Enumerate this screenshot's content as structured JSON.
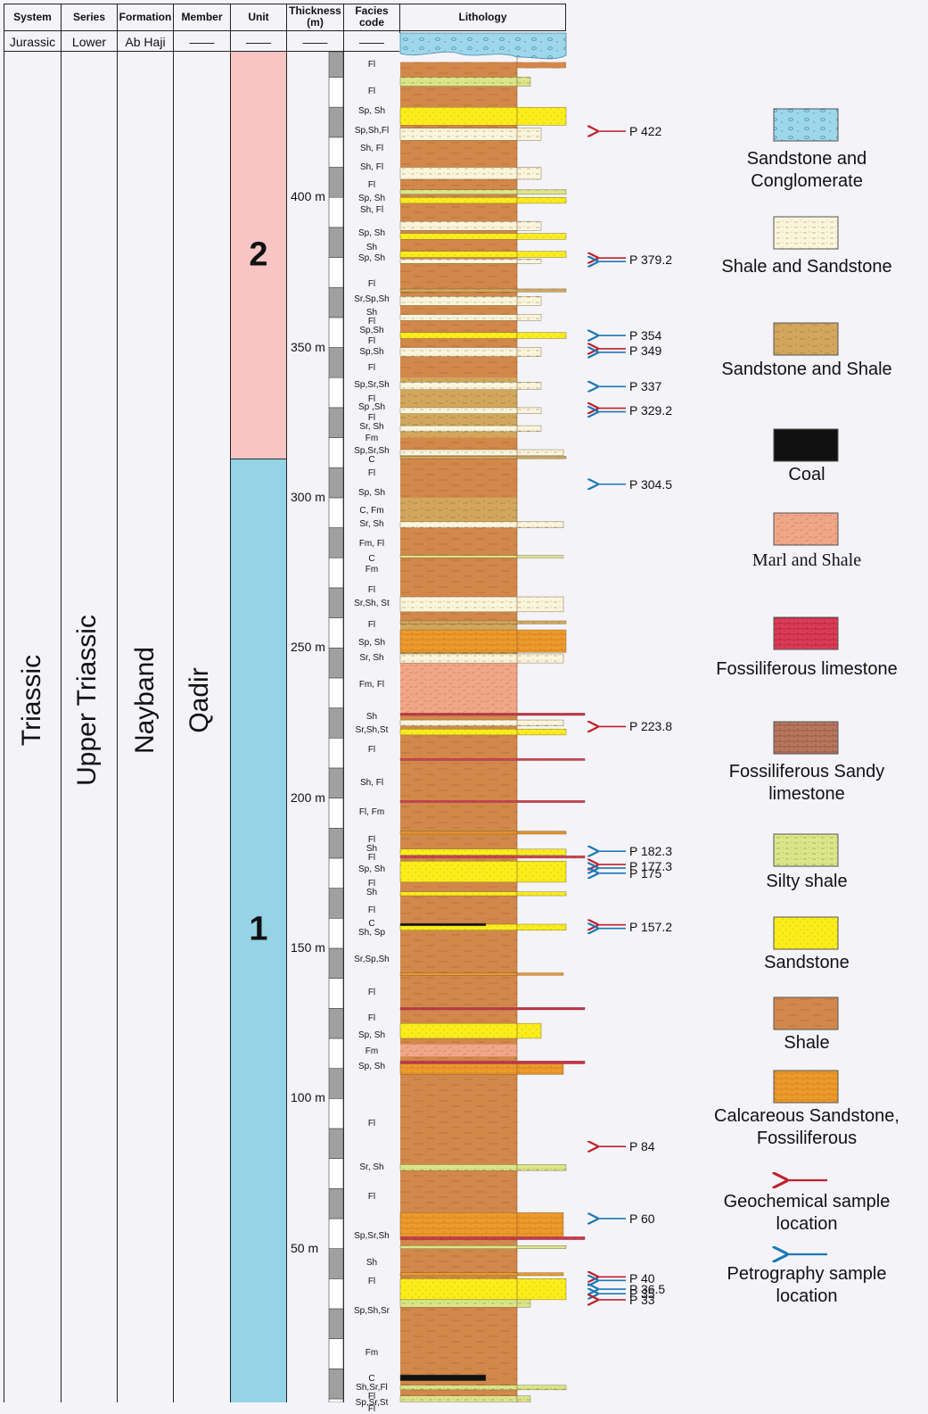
{
  "headers": {
    "system": "System",
    "series": "Series",
    "formation": "Formation",
    "member": "Member",
    "unit": "Unit",
    "thickness": "Thickness (m)",
    "facies": "Facies code",
    "lithology": "Lithology"
  },
  "top_row": {
    "system": "Jurassic",
    "series": "Lower",
    "formation": "Ab Haji",
    "member": "——",
    "unit": "——",
    "thickness": "——",
    "facies": "——"
  },
  "columns": {
    "system": "Triassic",
    "series": "Upper Triassic",
    "formation": "Nayband",
    "member": "Qadir"
  },
  "units": [
    {
      "label": "2",
      "color": "#f9c4c4"
    },
    {
      "label": "1",
      "color": "#94d4e6"
    }
  ],
  "scale": {
    "min_m": 0,
    "max_m": 450,
    "ticks": [
      {
        "value": 50,
        "label": "50 m"
      },
      {
        "value": 100,
        "label": "100 m"
      },
      {
        "value": 150,
        "label": "150 m"
      },
      {
        "value": 200,
        "label": "200 m"
      },
      {
        "value": 250,
        "label": "250 m"
      },
      {
        "value": 300,
        "label": "300 m"
      },
      {
        "value": 350,
        "label": "350 m"
      },
      {
        "value": 400,
        "label": "400 m"
      }
    ]
  },
  "facies": [
    {
      "m": 444,
      "text": "Fl"
    },
    {
      "m": 435,
      "text": "Fl"
    },
    {
      "m": 428.5,
      "text": "Sp, Sh"
    },
    {
      "m": 422,
      "text": "Sp,Sh,Fl"
    },
    {
      "m": 416,
      "text": "Sh, Fl"
    },
    {
      "m": 410,
      "text": "Sh, Fl"
    },
    {
      "m": 404,
      "text": "Fl"
    },
    {
      "m": 399.5,
      "text": "Sp, Sh"
    },
    {
      "m": 395.5,
      "text": "Sh, Fl"
    },
    {
      "m": 388,
      "text": "Sp, Sh"
    },
    {
      "m": 383,
      "text": "Sh"
    },
    {
      "m": 379.5,
      "text": "Sp, Sh"
    },
    {
      "m": 371,
      "text": "Fl"
    },
    {
      "m": 366,
      "text": "Sr,Sp,Sh"
    },
    {
      "m": 361.5,
      "text": "Sh"
    },
    {
      "m": 358.5,
      "text": "Fl"
    },
    {
      "m": 355.5,
      "text": "Sp,Sh"
    },
    {
      "m": 352,
      "text": "Fl"
    },
    {
      "m": 348.5,
      "text": "Sp,Sh"
    },
    {
      "m": 343,
      "text": "Fl"
    },
    {
      "m": 337.5,
      "text": "Sp,Sr,Sh"
    },
    {
      "m": 332.5,
      "text": "Fl"
    },
    {
      "m": 330,
      "text": "Sp ,Sh"
    },
    {
      "m": 326.5,
      "text": "Fl"
    },
    {
      "m": 323.5,
      "text": "Sr, Sh"
    },
    {
      "m": 319.5,
      "text": "Fm"
    },
    {
      "m": 315.5,
      "text": "Sp,Sr,Sh"
    },
    {
      "m": 312.5,
      "text": "C"
    },
    {
      "m": 308,
      "text": "Fl"
    },
    {
      "m": 301.5,
      "text": "Sp, Sh"
    },
    {
      "m": 295.5,
      "text": "C, Fm"
    },
    {
      "m": 291,
      "text": "Sr, Sh"
    },
    {
      "m": 284.5,
      "text": "Fm, Fl"
    },
    {
      "m": 279.5,
      "text": "C"
    },
    {
      "m": 276,
      "text": "Fm"
    },
    {
      "m": 269,
      "text": "Fl"
    },
    {
      "m": 264.5,
      "text": "Sr,Sh, St"
    },
    {
      "m": 257.5,
      "text": "Fl"
    },
    {
      "m": 251.5,
      "text": "Sp, Sh"
    },
    {
      "m": 246.5,
      "text": "Sr, Sh"
    },
    {
      "m": 237.5,
      "text": "Fm, Fl"
    },
    {
      "m": 227,
      "text": "Sh"
    },
    {
      "m": 222.5,
      "text": "Sr,Sh,St"
    },
    {
      "m": 216,
      "text": "Fl"
    },
    {
      "m": 205,
      "text": "Sh, Fl"
    },
    {
      "m": 195,
      "text": "Fl, Fm"
    },
    {
      "m": 186,
      "text": "Fl"
    },
    {
      "m": 183,
      "text": "Sh"
    },
    {
      "m": 180,
      "text": "Fl"
    },
    {
      "m": 176,
      "text": "Sp, Sh"
    },
    {
      "m": 171.5,
      "text": "Fl"
    },
    {
      "m": 168.5,
      "text": "Sh"
    },
    {
      "m": 162.5,
      "text": "Fl"
    },
    {
      "m": 158,
      "text": "C"
    },
    {
      "m": 155,
      "text": "Sh, Sp"
    },
    {
      "m": 146,
      "text": "Sr,Sp,Sh"
    },
    {
      "m": 135,
      "text": "Fl"
    },
    {
      "m": 126.5,
      "text": "Fl"
    },
    {
      "m": 121,
      "text": "Sp, Sh"
    },
    {
      "m": 115.5,
      "text": "Fm"
    },
    {
      "m": 110.5,
      "text": "Sp, Sh"
    },
    {
      "m": 91.5,
      "text": "Fl"
    },
    {
      "m": 77,
      "text": "Sr, Sh"
    },
    {
      "m": 67,
      "text": "Fl"
    },
    {
      "m": 54,
      "text": "Sp,Sr,Sh"
    },
    {
      "m": 45,
      "text": "Sh"
    },
    {
      "m": 39,
      "text": "Fl"
    },
    {
      "m": 29,
      "text": "Sp,Sh,Sr"
    },
    {
      "m": 15,
      "text": "Fm"
    },
    {
      "m": 6.5,
      "text": "C"
    },
    {
      "m": 3.5,
      "text": "Sh,Sr,Fl"
    },
    {
      "m": 0.5,
      "text": "Fl"
    },
    {
      "m": -1.5,
      "text": "Sp,Sr,St"
    },
    {
      "m": -3.5,
      "text": "Fl"
    }
  ],
  "samples": [
    {
      "label": "P 422",
      "m": 422,
      "type": "geochemical"
    },
    {
      "label": "P 379.2",
      "m": 379.2,
      "type": "both"
    },
    {
      "label": "P 354",
      "m": 354,
      "type": "petrography"
    },
    {
      "label": "P 349",
      "m": 349,
      "type": "both"
    },
    {
      "label": "P 337",
      "m": 337,
      "type": "petrography"
    },
    {
      "label": "P 329.2",
      "m": 329.2,
      "type": "both"
    },
    {
      "label": "P 304.5",
      "m": 304.5,
      "type": "petrography"
    },
    {
      "label": "P 223.8",
      "m": 223.8,
      "type": "geochemical"
    },
    {
      "label": "P 182.3",
      "m": 182.3,
      "type": "petrography"
    },
    {
      "label": "P 177.3",
      "m": 177.3,
      "type": "both"
    },
    {
      "label": "P 175",
      "m": 175,
      "type": "petrography"
    },
    {
      "label": "P 157.2",
      "m": 157.2,
      "type": "both"
    },
    {
      "label": "P 84",
      "m": 84,
      "type": "geochemical"
    },
    {
      "label": "P 60",
      "m": 60,
      "type": "petrography"
    },
    {
      "label": "P 40",
      "m": 40,
      "type": "both"
    },
    {
      "label": "P 36.5",
      "m": 36.5,
      "type": "petrography"
    },
    {
      "label": "P 35",
      "m": 35,
      "type": "petrography"
    },
    {
      "label": "P 33",
      "m": 33,
      "type": "geochemical"
    }
  ],
  "legend": [
    {
      "key": "sandstone-conglomerate",
      "text": "Sandstone and Conglomerate",
      "color": "#9fd7ea"
    },
    {
      "key": "shale-sandstone",
      "text": "Shale and Sandstone",
      "color": "#fbf5dc"
    },
    {
      "key": "sandstone-shale",
      "text": "Sandstone and Shale",
      "color": "#d2a75d"
    },
    {
      "key": "coal",
      "text": "Coal",
      "color": "#111111"
    },
    {
      "key": "marl-shale",
      "text": "Marl and Shale",
      "color": "#f0a787"
    },
    {
      "key": "fossiliferous-limestone",
      "text": "Fossiliferous limestone",
      "color": "#dc3b55"
    },
    {
      "key": "fossiliferous-sandy-limestone",
      "text": "Fossiliferous Sandy limestone",
      "color": "#b9765f"
    },
    {
      "key": "silty-shale",
      "text": "Silty shale",
      "color": "#dbe68a"
    },
    {
      "key": "sandstone",
      "text": "Sandstone",
      "color": "#fbed1c"
    },
    {
      "key": "shale",
      "text": "Shale",
      "color": "#d2884a"
    },
    {
      "key": "calcareous-sandstone",
      "text": "Calcareous Sandstone, Fossiliferous",
      "color": "#ee9a2c"
    },
    {
      "key": "geochemical-arrow",
      "text": "Geochemical sample location",
      "color": "#c0202a"
    },
    {
      "key": "petrography-arrow",
      "text": "Petrography sample location",
      "color": "#1a78b6"
    }
  ],
  "lithology_intervals": [
    {
      "from": 0,
      "to": 445,
      "type": "shale",
      "right": 580
    },
    {
      "from": 242,
      "to": 258,
      "type": "sandstone-shale",
      "right": 580
    },
    {
      "from": 290,
      "to": 300,
      "type": "sandstone-shale",
      "right": 580
    },
    {
      "from": 320,
      "to": 340,
      "type": "sandstone-shale",
      "right": 580
    },
    {
      "from": 228,
      "to": 245,
      "type": "marl-shale",
      "right": 580
    },
    {
      "from": 114,
      "to": 118,
      "type": "marl-shale",
      "right": 580
    },
    {
      "from": 443,
      "to": 445,
      "type": "shale",
      "right": 635
    }
  ],
  "lithology_beds": [
    {
      "from": 437,
      "to": 440,
      "type": "silty-shale",
      "right": 595
    },
    {
      "from": 424,
      "to": 430,
      "type": "sandstone",
      "right": 635
    },
    {
      "from": 419,
      "to": 423,
      "type": "shale-sandstone",
      "right": 607
    },
    {
      "from": 406,
      "to": 410,
      "type": "shale-sandstone",
      "right": 607
    },
    {
      "from": 401,
      "to": 402.5,
      "type": "silty-shale",
      "right": 635
    },
    {
      "from": 398,
      "to": 400,
      "type": "sandstone",
      "right": 635
    },
    {
      "from": 389,
      "to": 392,
      "type": "shale-sandstone",
      "right": 607
    },
    {
      "from": 386,
      "to": 388,
      "type": "sandstone",
      "right": 635
    },
    {
      "from": 380,
      "to": 382,
      "type": "sandstone",
      "right": 635
    },
    {
      "from": 378,
      "to": 379.5,
      "type": "shale-sandstone",
      "right": 607
    },
    {
      "from": 368.5,
      "to": 369.5,
      "type": "sandstone-shale",
      "right": 635
    },
    {
      "from": 364,
      "to": 367,
      "type": "shale-sandstone",
      "right": 607
    },
    {
      "from": 359,
      "to": 361,
      "type": "shale-sandstone",
      "right": 607
    },
    {
      "from": 353,
      "to": 355,
      "type": "sandstone",
      "right": 635
    },
    {
      "from": 347,
      "to": 350,
      "type": "shale-sandstone",
      "right": 607
    },
    {
      "from": 336,
      "to": 338.5,
      "type": "shale-sandstone",
      "right": 607
    },
    {
      "from": 328,
      "to": 330,
      "type": "shale-sandstone",
      "right": 607
    },
    {
      "from": 322,
      "to": 324,
      "type": "shale-sandstone",
      "right": 607
    },
    {
      "from": 314,
      "to": 316,
      "type": "shale-sandstone",
      "right": 632
    },
    {
      "from": 313,
      "to": 313.8,
      "type": "sandstone-shale",
      "right": 635
    },
    {
      "from": 290,
      "to": 292,
      "type": "shale-sandstone",
      "right": 632
    },
    {
      "from": 280,
      "to": 280.8,
      "type": "silty-shale",
      "right": 632
    },
    {
      "from": 262,
      "to": 267,
      "type": "shale-sandstone",
      "right": 632
    },
    {
      "from": 258,
      "to": 259,
      "type": "sandstone-shale",
      "right": 635
    },
    {
      "from": 248.5,
      "to": 256,
      "type": "calcareous-sandstone",
      "right": 635
    },
    {
      "from": 245,
      "to": 248,
      "type": "shale-sandstone",
      "right": 632
    },
    {
      "from": 227.5,
      "to": 228.3,
      "type": "fossiliferous-limestone",
      "right": 656
    },
    {
      "from": 224,
      "to": 226,
      "type": "shale-sandstone",
      "right": 632
    },
    {
      "from": 221,
      "to": 223,
      "type": "sandstone",
      "right": 635
    },
    {
      "from": 212.5,
      "to": 213.2,
      "type": "fossiliferous-limestone",
      "right": 656
    },
    {
      "from": 198.5,
      "to": 199.2,
      "type": "fossiliferous-limestone",
      "right": 656
    },
    {
      "from": 188,
      "to": 189,
      "type": "calcareous-sandstone",
      "right": 635
    },
    {
      "from": 181,
      "to": 183,
      "type": "sandstone",
      "right": 635
    },
    {
      "from": 180,
      "to": 180.8,
      "type": "fossiliferous-limestone",
      "right": 656
    },
    {
      "from": 172,
      "to": 179,
      "type": "sandstone",
      "right": 635
    },
    {
      "from": 167.5,
      "to": 168.8,
      "type": "sandstone",
      "right": 635
    },
    {
      "from": 156,
      "to": 158,
      "type": "sandstone",
      "right": 635
    },
    {
      "from": 157.5,
      "to": 158.3,
      "type": "coal",
      "right": 545
    },
    {
      "from": 141,
      "to": 141.8,
      "type": "calcareous-sandstone",
      "right": 632
    },
    {
      "from": 129.5,
      "to": 130.3,
      "type": "fossiliferous-limestone",
      "right": 656
    },
    {
      "from": 120,
      "to": 125,
      "type": "sandstone",
      "right": 607
    },
    {
      "from": 111.5,
      "to": 112.5,
      "type": "fossiliferous-limestone",
      "right": 656
    },
    {
      "from": 108,
      "to": 111.5,
      "type": "calcareous-sandstone",
      "right": 632
    },
    {
      "from": 76,
      "to": 78,
      "type": "silty-shale",
      "right": 635
    },
    {
      "from": 54,
      "to": 62,
      "type": "calcareous-sandstone",
      "right": 632
    },
    {
      "from": 53,
      "to": 54,
      "type": "fossiliferous-limestone",
      "right": 656
    },
    {
      "from": 50,
      "to": 51,
      "type": "silty-shale",
      "right": 635
    },
    {
      "from": 41,
      "to": 42,
      "type": "calcareous-sandstone",
      "right": 632
    },
    {
      "from": 33,
      "to": 40,
      "type": "sandstone",
      "right": 635
    },
    {
      "from": 30.5,
      "to": 33,
      "type": "silty-shale",
      "right": 595
    },
    {
      "from": 6,
      "to": 8,
      "type": "coal",
      "right": 545
    },
    {
      "from": 3,
      "to": 4.5,
      "type": "silty-shale",
      "right": 635
    },
    {
      "from": -1,
      "to": 1,
      "type": "silty-shale",
      "right": 595
    },
    {
      "from": -3.5,
      "to": -1.5,
      "type": "sandstone",
      "right": 635
    }
  ]
}
